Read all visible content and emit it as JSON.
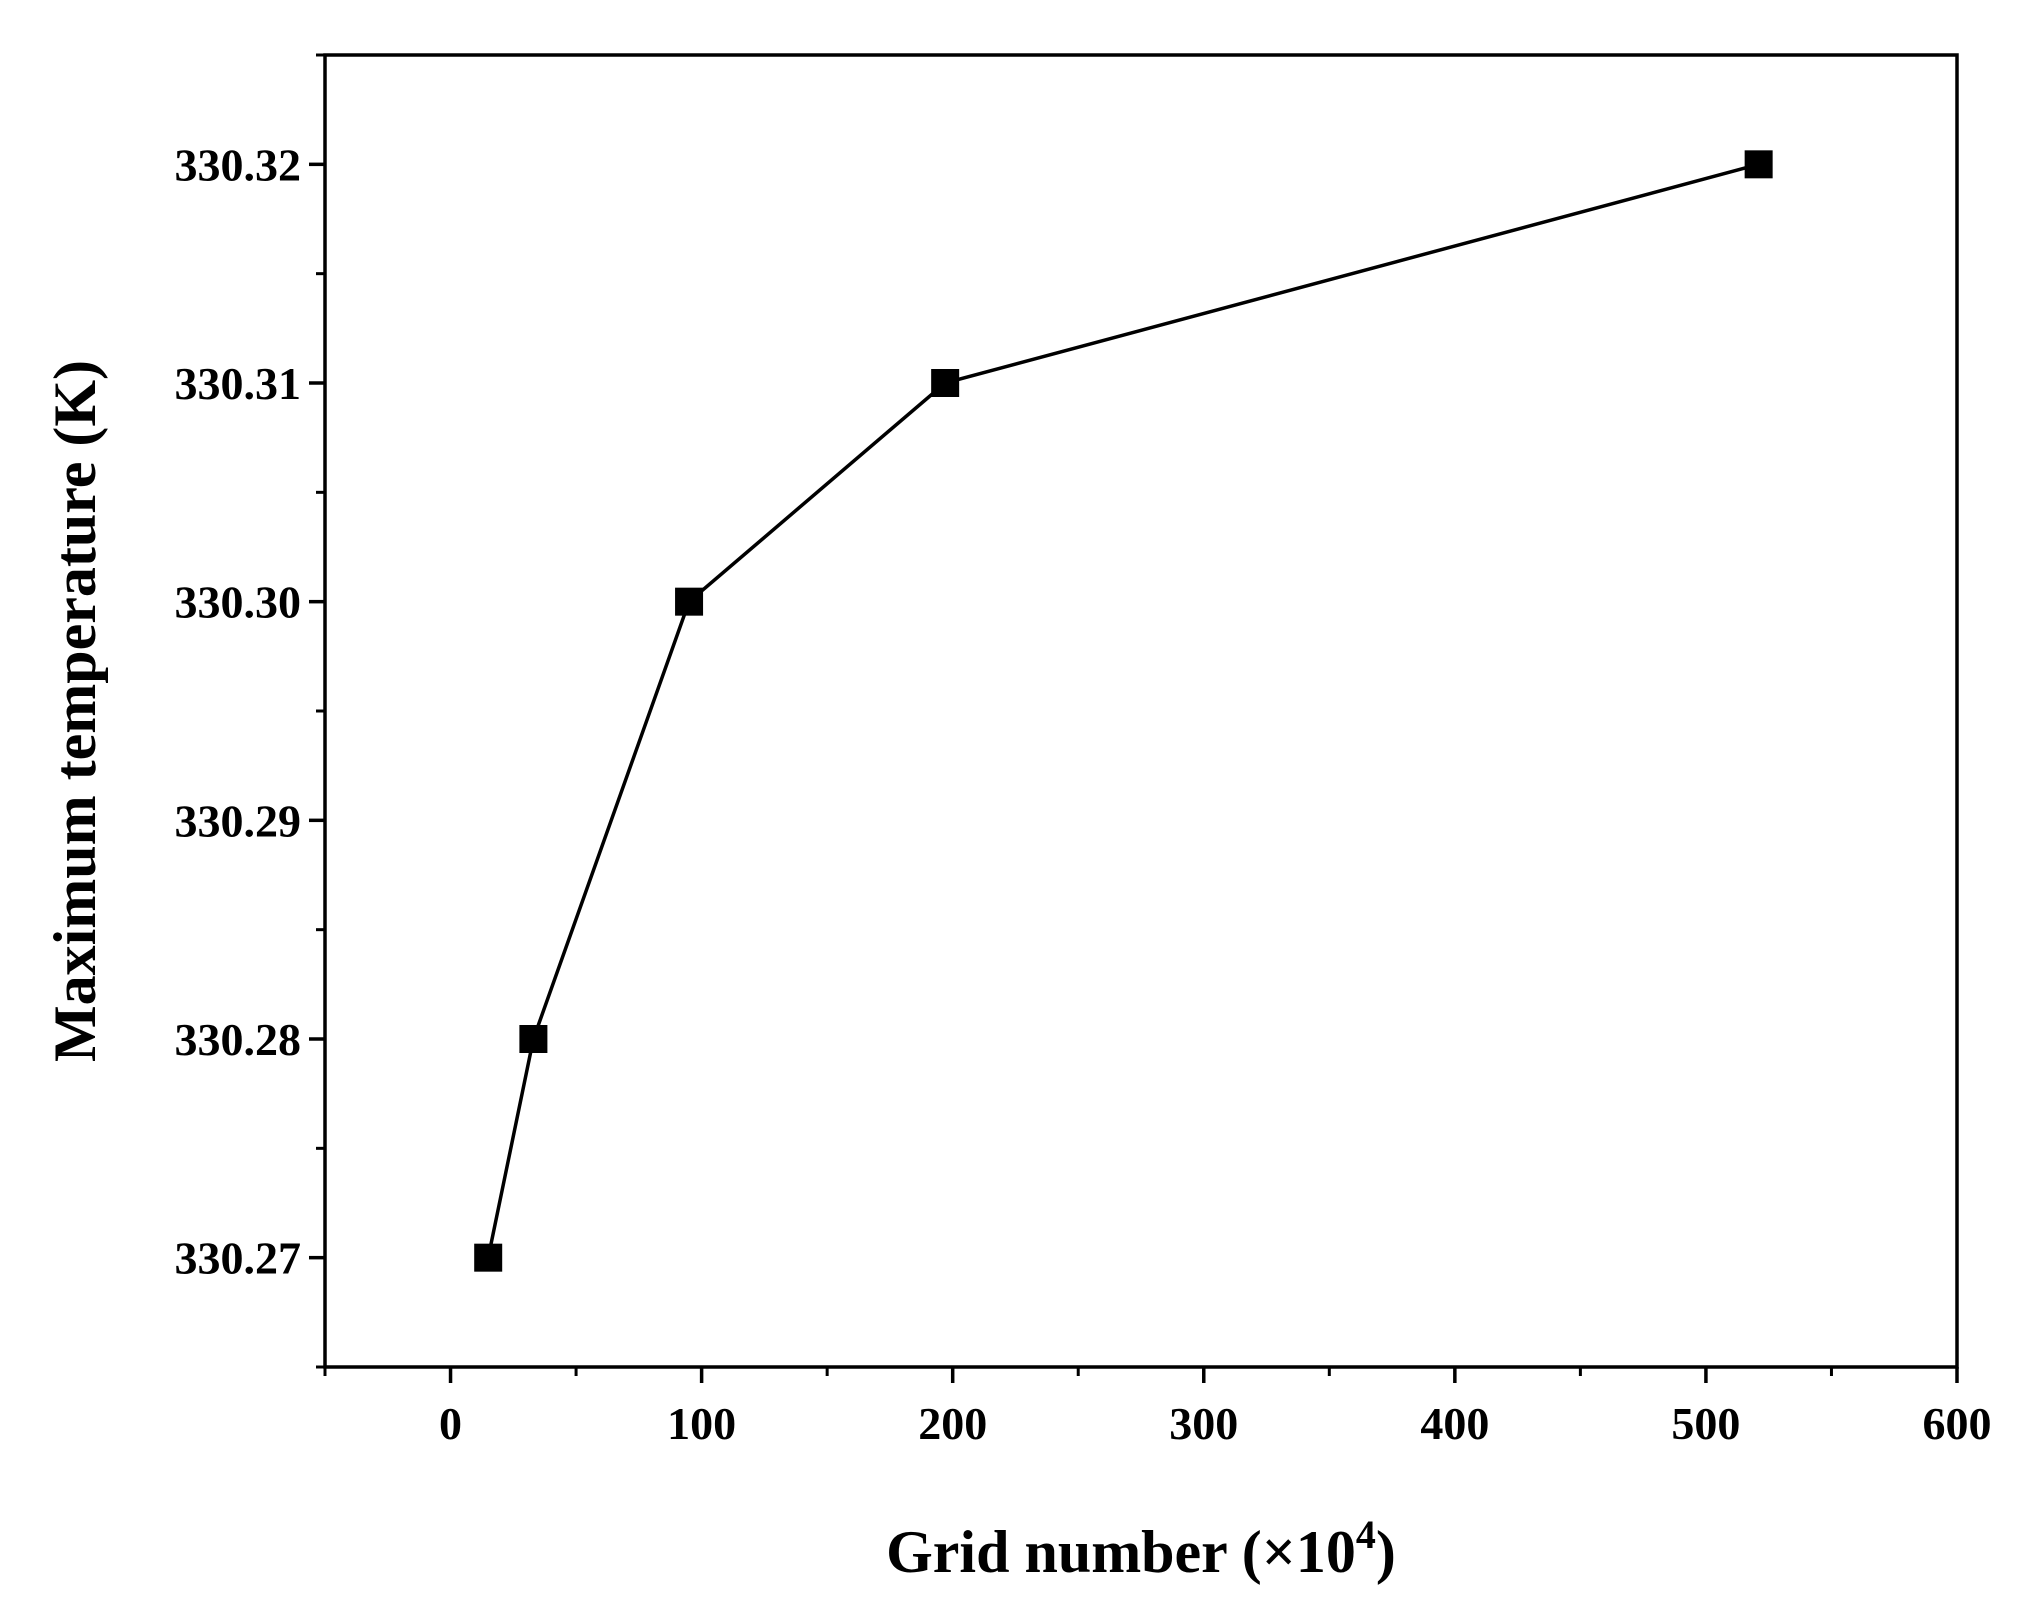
{
  "chart_data": {
    "type": "line",
    "title": "",
    "xlabel": "Grid number (×10",
    "xlabel_superscript": "4",
    "xlabel_suffix": ")",
    "ylabel": "Maximum temperature (K)",
    "xlim": [
      -50,
      600
    ],
    "ylim": [
      330.265,
      330.325
    ],
    "x_ticks": [
      0,
      100,
      200,
      300,
      400,
      500,
      600
    ],
    "x_tick_labels": [
      "0",
      "100",
      "200",
      "300",
      "400",
      "500",
      "600"
    ],
    "x_minor_ticks": [
      -50,
      50,
      150,
      250,
      350,
      450,
      550
    ],
    "y_ticks": [
      330.27,
      330.28,
      330.29,
      330.3,
      330.31,
      330.32
    ],
    "y_tick_labels": [
      "330.27",
      "330.28",
      "330.29",
      "330.30",
      "330.31",
      "330.32"
    ],
    "y_minor_ticks": [
      330.265,
      330.275,
      330.285,
      330.295,
      330.305,
      330.315,
      330.325
    ],
    "grid": false,
    "legend": "none",
    "series": [
      {
        "marker": "square",
        "color": "#000000",
        "x": [
          15,
          33,
          95,
          197,
          521
        ],
        "y": [
          330.27,
          330.28,
          330.3,
          330.31,
          330.32
        ]
      }
    ]
  }
}
